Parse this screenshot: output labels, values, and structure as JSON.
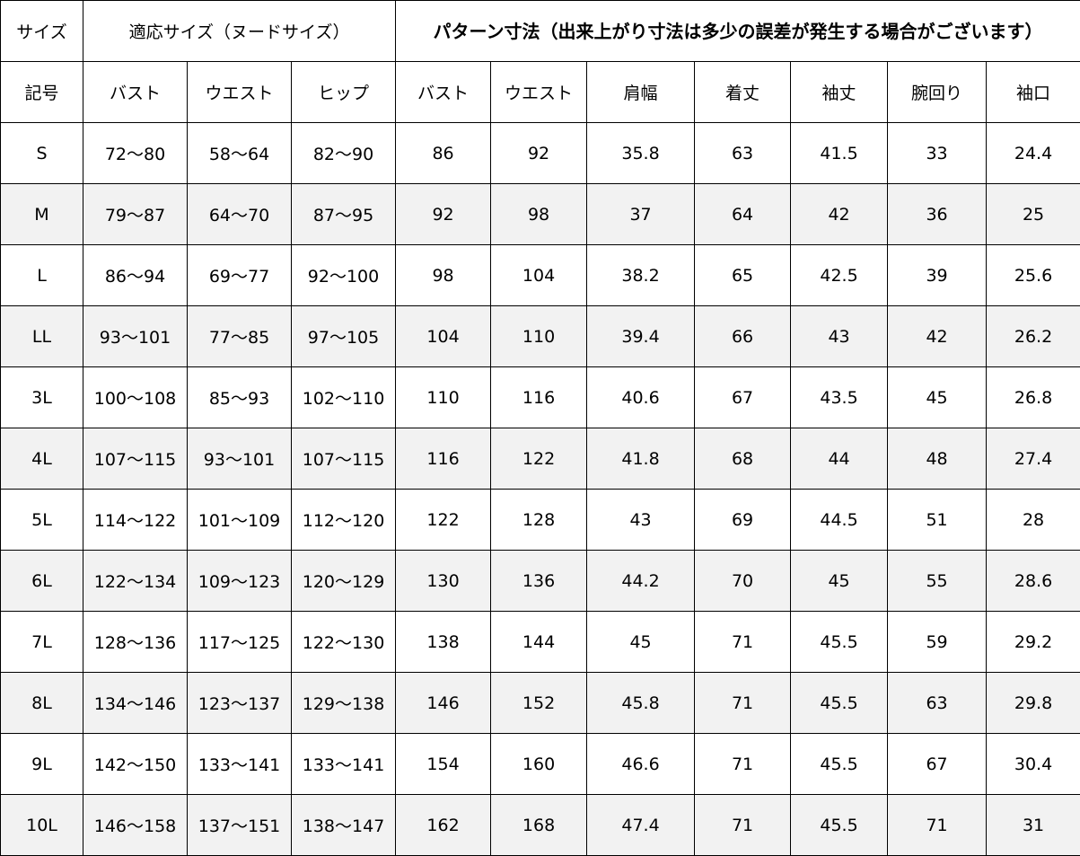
{
  "header": {
    "size_label": "サイズ",
    "fit_size_group": "適応サイズ（ヌードサイズ）",
    "pattern_group": "パターン寸法（出来上がり寸法は多少の誤差が発生する場合がございます）",
    "columns": [
      "記号",
      "バスト",
      "ウエスト",
      "ヒップ",
      "バスト",
      "ウエスト",
      "肩幅",
      "着丈",
      "袖丈",
      "腕回り",
      "袖口"
    ]
  },
  "rows": [
    [
      "S",
      "72～80",
      "58～64",
      "82～90",
      "86",
      "92",
      "35.8",
      "63",
      "41.5",
      "33",
      "24.4"
    ],
    [
      "M",
      "79～87",
      "64～70",
      "87～95",
      "92",
      "98",
      "37",
      "64",
      "42",
      "36",
      "25"
    ],
    [
      "L",
      "86～94",
      "69～77",
      "92～100",
      "98",
      "104",
      "38.2",
      "65",
      "42.5",
      "39",
      "25.6"
    ],
    [
      "LL",
      "93～101",
      "77～85",
      "97～105",
      "104",
      "110",
      "39.4",
      "66",
      "43",
      "42",
      "26.2"
    ],
    [
      "3L",
      "100～108",
      "85～93",
      "102～110",
      "110",
      "116",
      "40.6",
      "67",
      "43.5",
      "45",
      "26.8"
    ],
    [
      "4L",
      "107～115",
      "93～101",
      "107～115",
      "116",
      "122",
      "41.8",
      "68",
      "44",
      "48",
      "27.4"
    ],
    [
      "5L",
      "114～122",
      "101～109",
      "112～120",
      "122",
      "128",
      "43",
      "69",
      "44.5",
      "51",
      "28"
    ],
    [
      "6L",
      "122～134",
      "109～123",
      "120～129",
      "130",
      "136",
      "44.2",
      "70",
      "45",
      "55",
      "28.6"
    ],
    [
      "7L",
      "128～136",
      "117～125",
      "122～130",
      "138",
      "144",
      "45",
      "71",
      "45.5",
      "59",
      "29.2"
    ],
    [
      "8L",
      "134～146",
      "123～137",
      "129～138",
      "146",
      "152",
      "45.8",
      "71",
      "45.5",
      "63",
      "29.8"
    ],
    [
      "9L",
      "142～150",
      "133～141",
      "133～141",
      "154",
      "160",
      "46.6",
      "71",
      "45.5",
      "67",
      "30.4"
    ],
    [
      "10L",
      "146～158",
      "137～151",
      "138～147",
      "162",
      "168",
      "47.4",
      "71",
      "45.5",
      "71",
      "31"
    ]
  ],
  "colors": {
    "alt_row": "#f2f2f2",
    "border": "#000000"
  }
}
